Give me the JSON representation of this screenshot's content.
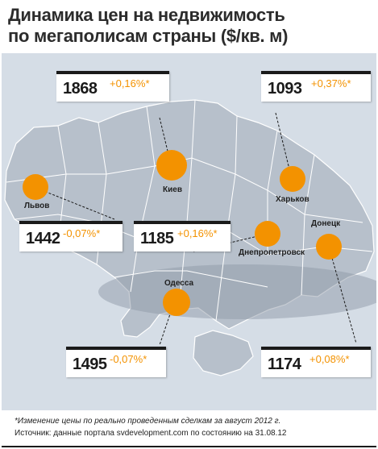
{
  "title": {
    "line1": "Динамика цен на недвижимость",
    "line2": "по мегаполисам страны ($/кв. м)"
  },
  "colors": {
    "accent": "#f39200",
    "land": "#b7c0cb",
    "sea": "#d5dde6",
    "text": "#1a1a1a"
  },
  "cities": {
    "kiev": {
      "name": "Киев",
      "price": "1868",
      "change": "+0,16%*"
    },
    "kharkov": {
      "name": "Харьков",
      "price": "1093",
      "change": "+0,37%*"
    },
    "lvov": {
      "name": "Львов",
      "price": "1442",
      "change": "-0,07%*"
    },
    "dnipro": {
      "name": "Днепропетровск",
      "price": "1185",
      "change": "+0,16%*"
    },
    "donetsk": {
      "name": "Донецк",
      "price": "1174",
      "change": "+0,08%*"
    },
    "odessa": {
      "name": "Одесса",
      "price": "1495",
      "change": "-0,07%*"
    }
  },
  "footer": {
    "note": "*Изменение цены по реально проведенным сделкам за август 2012 г.",
    "source": "Источник: данные портала svdevelopment.com по состоянию на 31.08.12"
  }
}
